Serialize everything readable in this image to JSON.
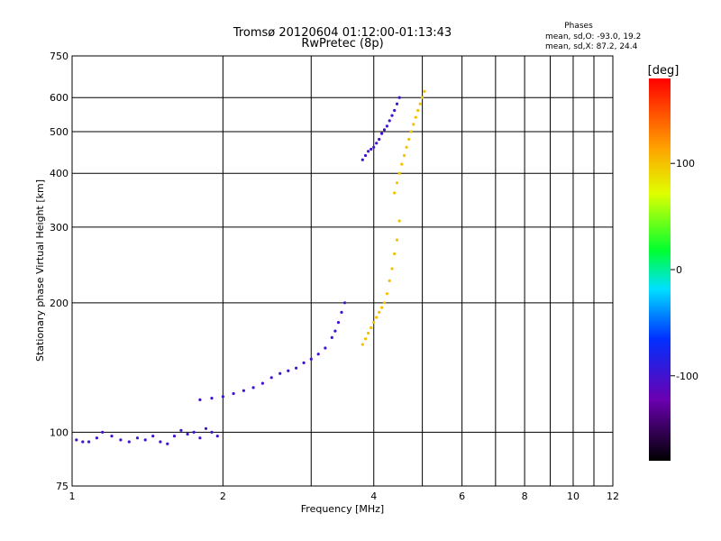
{
  "chart_data": {
    "type": "scatter",
    "title": "Tromsø 20120604 01:12:00-01:13:43",
    "subtitle": "RwPretec (8p)",
    "xlabel": "Frequency [MHz]",
    "ylabel": "Stationary phase Virtual Height [km]",
    "x_scale": "log",
    "y_scale": "log",
    "xlim": [
      1,
      12
    ],
    "ylim": [
      75,
      750
    ],
    "x_ticks": [
      1,
      2,
      4,
      6,
      8,
      10,
      12
    ],
    "x_tick_labels": [
      "1",
      "2",
      "4",
      "6",
      "8",
      "10",
      "12"
    ],
    "x_grid_extra": [
      3,
      5,
      7,
      9,
      11
    ],
    "y_ticks": [
      75,
      100,
      200,
      300,
      400,
      500,
      600,
      750
    ],
    "y_tick_labels": [
      "75",
      "100",
      "200",
      "300",
      "400",
      "500",
      "600",
      "750"
    ],
    "y_grid": [
      100,
      200,
      300,
      400,
      500,
      600
    ],
    "grid": true,
    "phases_header": "Phases",
    "phases_lines": [
      "mean, sd,O: -93.0, 19.2",
      "mean, sd,X:  87.2, 24.4"
    ],
    "colorbar": {
      "label": "[deg]",
      "range": [
        -180,
        180
      ],
      "ticks": [
        100,
        0,
        -100
      ],
      "tick_labels": [
        "100",
        "0",
        "-100"
      ]
    },
    "series": [
      {
        "name": "O",
        "color_value": -100,
        "points": [
          [
            1.02,
            96
          ],
          [
            1.05,
            95
          ],
          [
            1.08,
            95
          ],
          [
            1.12,
            97
          ],
          [
            1.15,
            100
          ],
          [
            1.2,
            98
          ],
          [
            1.25,
            96
          ],
          [
            1.3,
            95
          ],
          [
            1.35,
            97
          ],
          [
            1.4,
            96
          ],
          [
            1.45,
            98
          ],
          [
            1.5,
            95
          ],
          [
            1.55,
            94
          ],
          [
            1.6,
            98
          ],
          [
            1.65,
            101
          ],
          [
            1.7,
            99
          ],
          [
            1.75,
            100
          ],
          [
            1.8,
            97
          ],
          [
            1.85,
            102
          ],
          [
            1.9,
            100
          ],
          [
            1.95,
            98
          ],
          [
            1.8,
            119
          ],
          [
            1.9,
            120
          ],
          [
            2.0,
            121
          ],
          [
            2.1,
            123
          ],
          [
            2.2,
            125
          ],
          [
            2.3,
            127
          ],
          [
            2.4,
            130
          ],
          [
            2.5,
            134
          ],
          [
            2.6,
            137
          ],
          [
            2.7,
            139
          ],
          [
            2.8,
            141
          ],
          [
            2.9,
            145
          ],
          [
            3.0,
            148
          ],
          [
            3.1,
            152
          ],
          [
            3.2,
            157
          ],
          [
            3.3,
            166
          ],
          [
            3.35,
            172
          ],
          [
            3.4,
            180
          ],
          [
            3.45,
            190
          ],
          [
            3.5,
            200
          ],
          [
            3.8,
            430
          ],
          [
            3.85,
            440
          ],
          [
            3.9,
            450
          ],
          [
            3.95,
            455
          ],
          [
            4.0,
            460
          ],
          [
            4.05,
            470
          ],
          [
            4.1,
            480
          ],
          [
            4.15,
            495
          ],
          [
            4.2,
            505
          ],
          [
            4.25,
            515
          ],
          [
            4.3,
            530
          ],
          [
            4.35,
            545
          ],
          [
            4.4,
            560
          ],
          [
            4.45,
            580
          ],
          [
            4.5,
            600
          ]
        ]
      },
      {
        "name": "X",
        "color_value": 100,
        "points": [
          [
            3.8,
            160
          ],
          [
            3.85,
            165
          ],
          [
            3.9,
            170
          ],
          [
            3.95,
            175
          ],
          [
            4.0,
            180
          ],
          [
            4.05,
            185
          ],
          [
            4.1,
            190
          ],
          [
            4.15,
            195
          ],
          [
            4.2,
            200
          ],
          [
            4.25,
            210
          ],
          [
            4.3,
            225
          ],
          [
            4.35,
            240
          ],
          [
            4.4,
            260
          ],
          [
            4.45,
            280
          ],
          [
            4.5,
            310
          ],
          [
            4.4,
            360
          ],
          [
            4.45,
            380
          ],
          [
            4.5,
            400
          ],
          [
            4.55,
            420
          ],
          [
            4.6,
            440
          ],
          [
            4.65,
            460
          ],
          [
            4.7,
            480
          ],
          [
            4.75,
            500
          ],
          [
            4.8,
            520
          ],
          [
            4.85,
            540
          ],
          [
            4.9,
            560
          ],
          [
            4.95,
            580
          ],
          [
            5.0,
            600
          ],
          [
            5.05,
            620
          ]
        ]
      }
    ]
  }
}
